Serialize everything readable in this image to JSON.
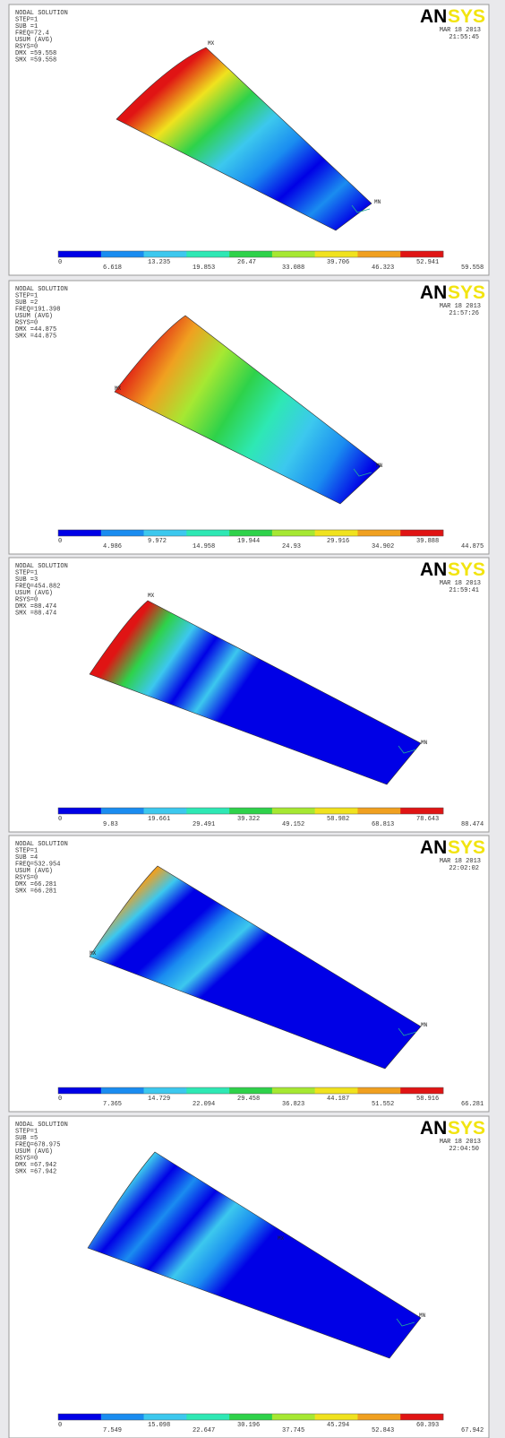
{
  "panels": [
    {
      "header": [
        "NODAL SOLUTION",
        "STEP=1",
        "SUB =1",
        "FREQ=72.4",
        "USUM     (AVG)",
        "RSYS=0",
        "DMX =59.558",
        "SMX =59.558"
      ],
      "logo": [
        "AN",
        "SYS"
      ],
      "date": "MAR 18 2013",
      "time": "21:55:45",
      "markers": [
        "MX",
        "MN"
      ],
      "legend": [
        "0",
        "6.618",
        "13.235",
        "19.853",
        "26.47",
        "33.088",
        "39.706",
        "46.323",
        "52.941",
        "59.558"
      ]
    },
    {
      "header": [
        "NODAL SOLUTION",
        "STEP=1",
        "SUB =2",
        "FREQ=191.398",
        "USUM     (AVG)",
        "RSYS=0",
        "DMX =44.875",
        "SMX =44.875"
      ],
      "logo": [
        "AN",
        "SYS"
      ],
      "date": "MAR 18 2013",
      "time": "21:57:26",
      "markers": [
        "MX",
        "MN"
      ],
      "legend": [
        "0",
        "4.986",
        "9.972",
        "14.958",
        "19.944",
        "24.93",
        "29.916",
        "34.902",
        "39.888",
        "44.875"
      ]
    },
    {
      "header": [
        "NODAL SOLUTION",
        "STEP=1",
        "SUB =3",
        "FREQ=454.882",
        "USUM     (AVG)",
        "RSYS=0",
        "DMX =88.474",
        "SMX =88.474"
      ],
      "logo": [
        "AN",
        "SYS"
      ],
      "date": "MAR 18 2013",
      "time": "21:59:41",
      "markers": [
        "MX",
        "MN"
      ],
      "legend": [
        "0",
        "9.83",
        "19.661",
        "29.491",
        "39.322",
        "49.152",
        "58.982",
        "68.813",
        "78.643",
        "88.474"
      ]
    },
    {
      "header": [
        "NODAL SOLUTION",
        "STEP=1",
        "SUB =4",
        "FREQ=532.954",
        "USUM     (AVG)",
        "RSYS=0",
        "DMX =66.281",
        "SMX =66.281"
      ],
      "logo": [
        "AN",
        "SYS"
      ],
      "date": "MAR 18 2013",
      "time": "22:02:02",
      "markers": [
        "MX",
        "MN"
      ],
      "legend": [
        "0",
        "7.365",
        "14.729",
        "22.094",
        "29.458",
        "36.823",
        "44.187",
        "51.552",
        "58.916",
        "66.281"
      ]
    },
    {
      "header": [
        "NODAL SOLUTION",
        "STEP=1",
        "SUB =5",
        "FREQ=678.975",
        "USUM     (AVG)",
        "RSYS=0",
        "DMX =67.942",
        "SMX =67.942"
      ],
      "logo": [
        "AN",
        "SYS"
      ],
      "date": "MAR 18 2013",
      "time": "22:04:50",
      "markers": [
        "MX",
        "MN"
      ],
      "legend": [
        "0",
        "7.549",
        "15.098",
        "22.647",
        "30.196",
        "37.745",
        "45.294",
        "52.843",
        "60.393",
        "67.942"
      ]
    }
  ]
}
